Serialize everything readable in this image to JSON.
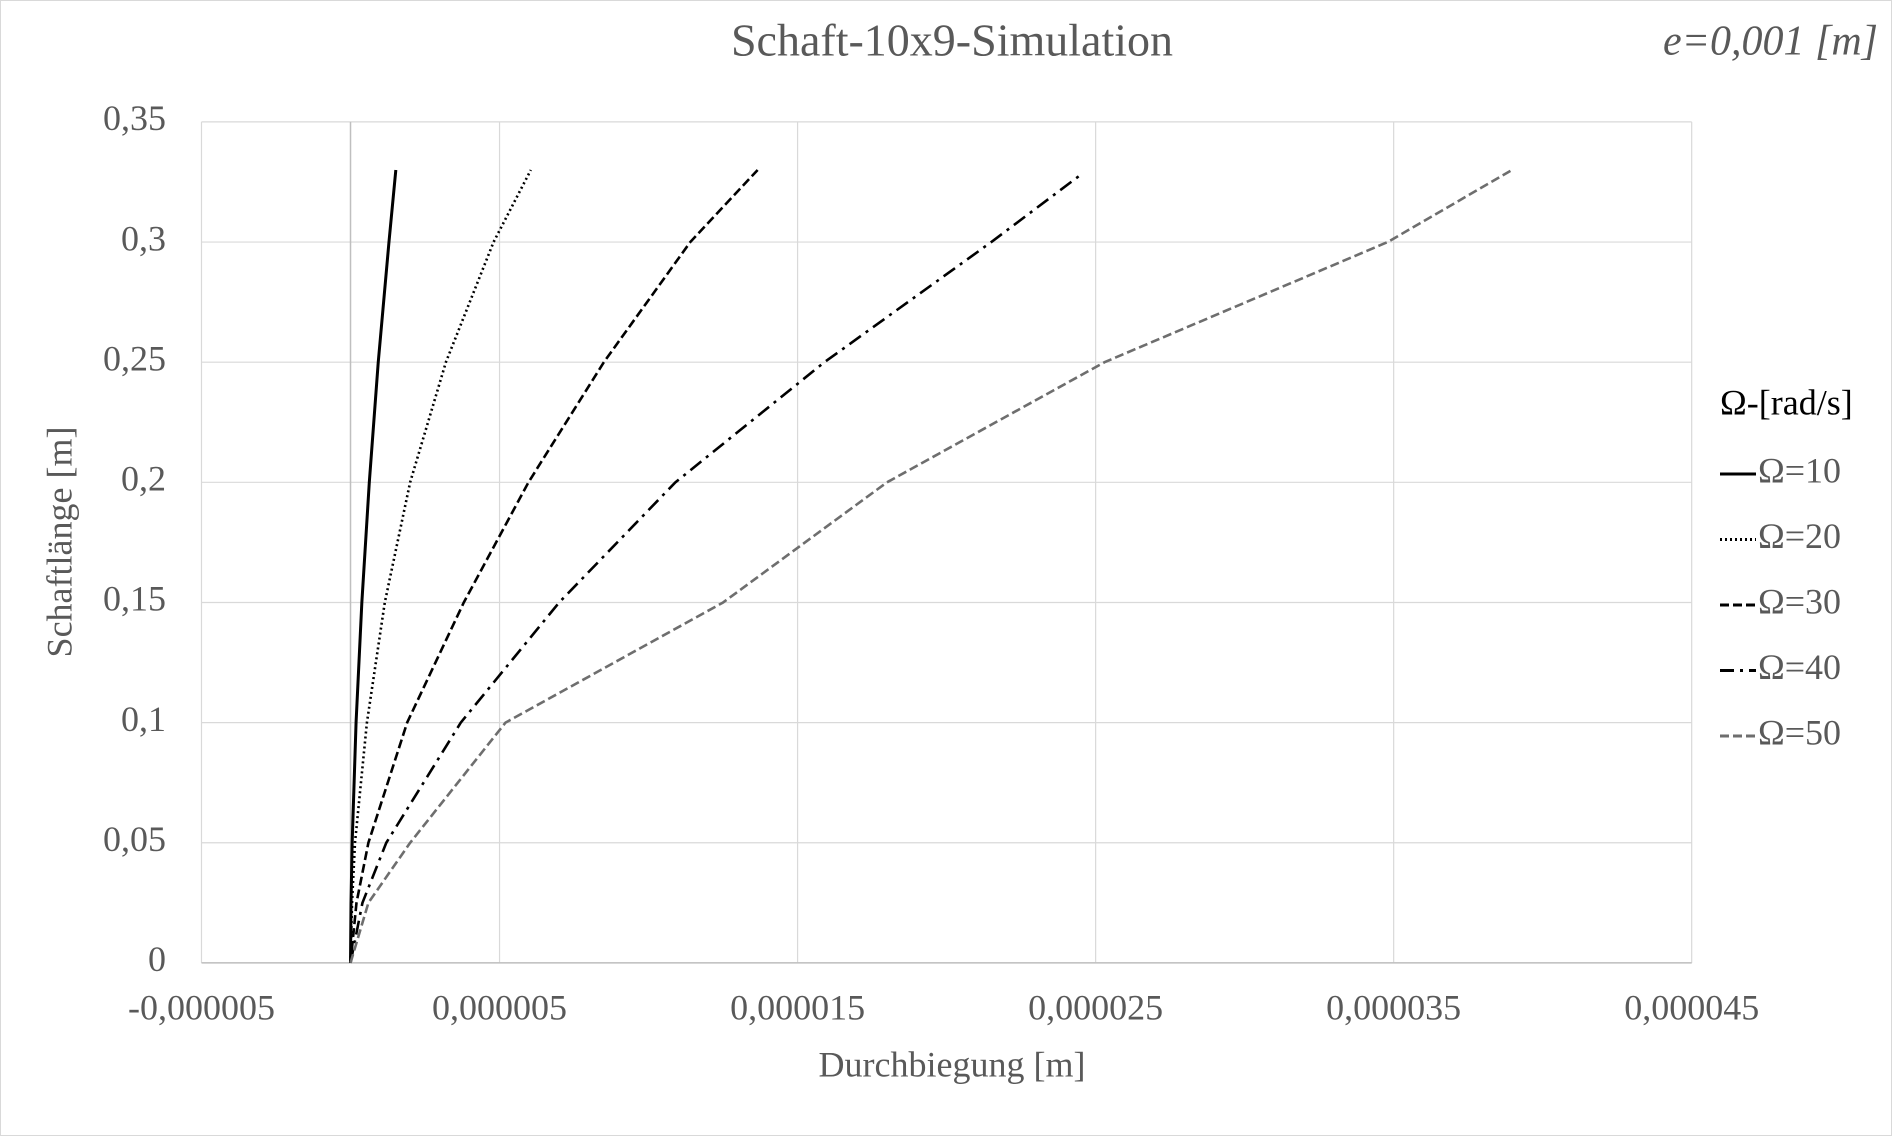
{
  "chart_data": {
    "type": "line",
    "title": "Schaft-10x9-Simulation",
    "annotation": "e=0,001 [m]",
    "x_label": "Durchbiegung  [m]",
    "y_label": "Schaftlänge  [m]",
    "legend_title": "Ω-[rad/s]",
    "legend": "right",
    "grid": true,
    "xlim": [
      -5e-06,
      4.5e-05
    ],
    "ylim": [
      0,
      0.35
    ],
    "xticks": [
      {
        "value": -5e-06,
        "label": "-0,000005"
      },
      {
        "value": 5e-06,
        "label": "0,000005"
      },
      {
        "value": 1.5e-05,
        "label": "0,000015"
      },
      {
        "value": 2.5e-05,
        "label": "0,000025"
      },
      {
        "value": 3.5e-05,
        "label": "0,000035"
      },
      {
        "value": 4.5e-05,
        "label": "0,000045"
      }
    ],
    "yticks": [
      0,
      {
        "value": 0.05,
        "label": "0,05"
      },
      {
        "value": 0.1,
        "label": "0,1"
      },
      {
        "value": 0.15,
        "label": "0,15"
      },
      {
        "value": 0.2,
        "label": "0,2"
      },
      {
        "value": 0.25,
        "label": "0,25"
      },
      {
        "value": 0.3,
        "label": "0,3"
      },
      {
        "value": 0.35,
        "label": "0,35"
      }
    ],
    "series": [
      {
        "name": "Ω=10",
        "color": "#000000",
        "dash": "solid",
        "x": [
          0,
          1.6e-08,
          5.5e-08,
          1.86e-07,
          3.8e-07,
          6.3e-07,
          9.3e-07,
          1.29e-06,
          1.52e-06
        ],
        "y": [
          0,
          0.025,
          0.05,
          0.1,
          0.15,
          0.2,
          0.25,
          0.3,
          0.33
        ]
      },
      {
        "name": "Ω=20",
        "color": "#000000",
        "dash": "dot",
        "x": [
          0,
          5e-08,
          1.5e-07,
          5.5e-07,
          1.15e-06,
          2e-06,
          3.2e-06,
          4.8e-06,
          6.05e-06
        ],
        "y": [
          0,
          0.025,
          0.05,
          0.1,
          0.15,
          0.2,
          0.25,
          0.3,
          0.33
        ]
      },
      {
        "name": "Ω=30",
        "color": "#000000",
        "dash": "dash",
        "x": [
          0,
          2e-07,
          6e-07,
          1.9e-06,
          3.8e-06,
          5.97e-06,
          8.5e-06,
          1.14e-05,
          1.366e-05
        ],
        "y": [
          0,
          0.025,
          0.05,
          0.1,
          0.15,
          0.2,
          0.25,
          0.3,
          0.33
        ]
      },
      {
        "name": "Ω=40",
        "color": "#000000",
        "dash": "dashdot",
        "x": [
          0,
          4e-07,
          1.2e-06,
          3.7e-06,
          7e-06,
          1.09e-05,
          1.59e-05,
          2.15e-05,
          2.45e-05
        ],
        "y": [
          0,
          0.025,
          0.05,
          0.1,
          0.15,
          0.2,
          0.25,
          0.3,
          0.328
        ]
      },
      {
        "name": "Ω=50",
        "color": "#6e6e6e",
        "dash": "longdash",
        "x": [
          0,
          6e-07,
          2e-06,
          5.2e-06,
          1.25e-05,
          1.8e-05,
          2.53e-05,
          3.48e-05,
          3.897e-05
        ],
        "y": [
          0,
          0.025,
          0.05,
          0.1,
          0.15,
          0.2,
          0.25,
          0.3,
          0.33
        ]
      }
    ]
  }
}
